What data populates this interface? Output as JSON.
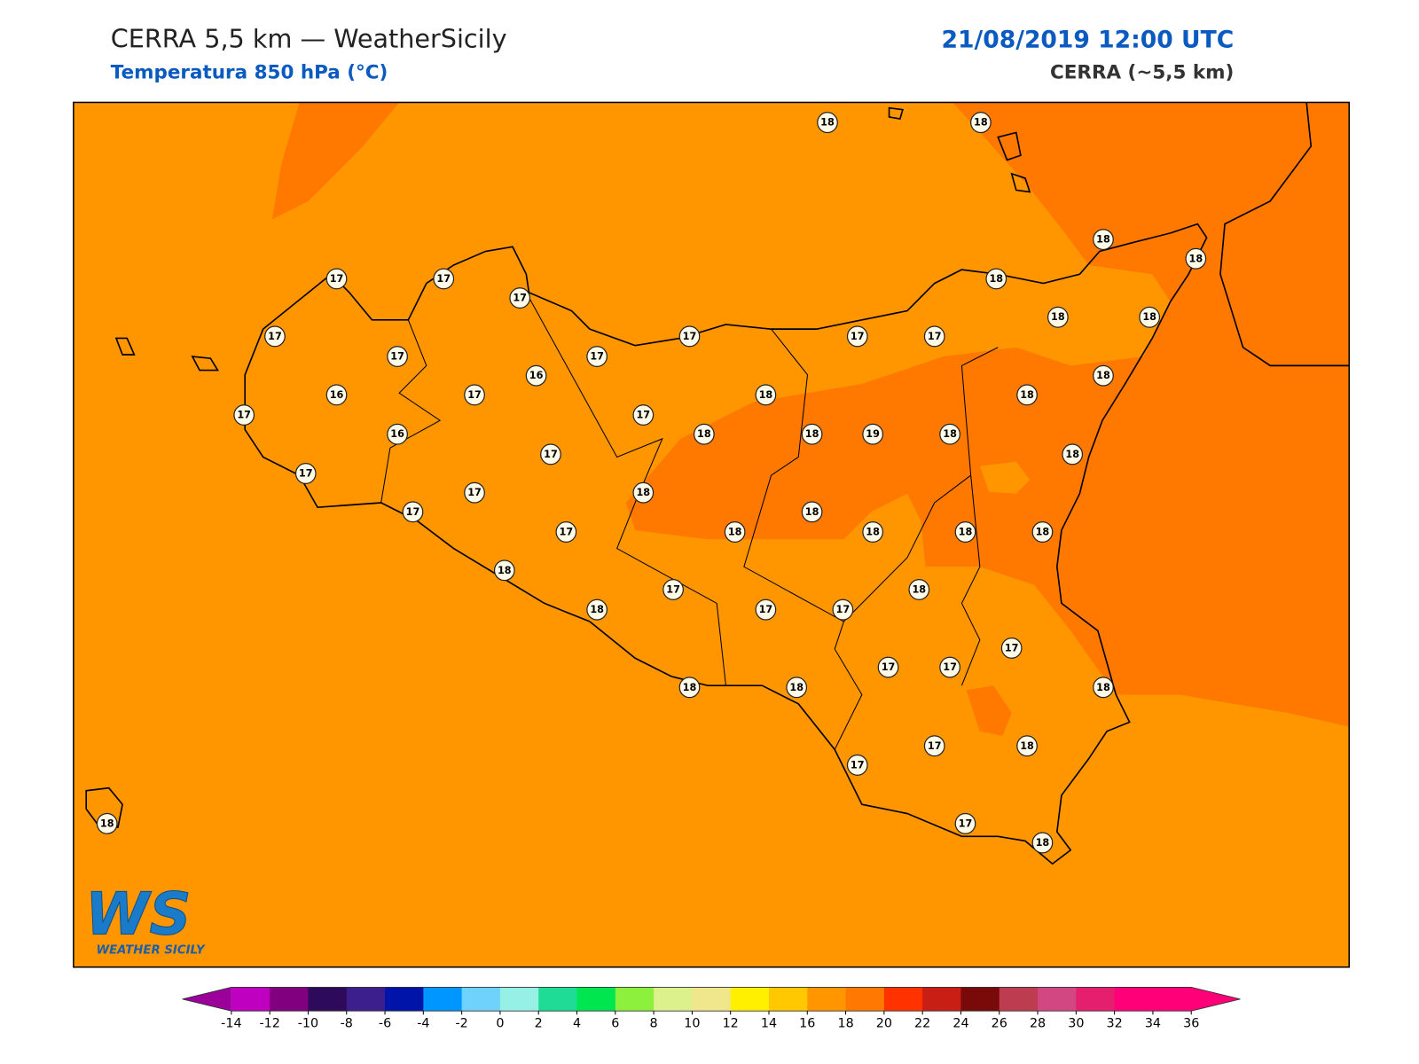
{
  "header": {
    "title": "CERRA 5,5 km — WeatherSicily",
    "subtitle": "Temperatura 850 hPa (°C)",
    "datetime": "21/08/2019 12:00 UTC",
    "model": "CERRA (~5,5 km)"
  },
  "logo": {
    "mark": "WS",
    "text": "WEATHER SICILY"
  },
  "stations": {
    "values": [
      18,
      18,
      18,
      18,
      17,
      17,
      17,
      18,
      18,
      18,
      17,
      17,
      17,
      17,
      17,
      17,
      16,
      18,
      16,
      17,
      18,
      18,
      17,
      17,
      16,
      18,
      18,
      19,
      18,
      17,
      18,
      17,
      17,
      18,
      17,
      18,
      17,
      18,
      18,
      18,
      18,
      18,
      17,
      18,
      18,
      17,
      17,
      17,
      17,
      17,
      18,
      18,
      18,
      17,
      17,
      18,
      17,
      18,
      18
    ]
  },
  "colorbar": {
    "ticks": [
      -14,
      -12,
      -10,
      -8,
      -6,
      -4,
      -2,
      0,
      2,
      4,
      6,
      8,
      10,
      12,
      14,
      16,
      18,
      20,
      22,
      24,
      26,
      28,
      30,
      32,
      34,
      36
    ],
    "colors": [
      "#c000c0",
      "#800080",
      "#2d0a5a",
      "#3c1e8c",
      "#0014aa",
      "#0096ff",
      "#6ed2fa",
      "#96f0e6",
      "#1edc96",
      "#00e650",
      "#8cf03c",
      "#dcf08c",
      "#f0e68c",
      "#fff000",
      "#ffc800",
      "#ff9600",
      "#ff7800",
      "#ff3200",
      "#c81e14",
      "#780a0a",
      "#be3c50",
      "#d24682",
      "#e61e6e",
      "#ff0078",
      "#ff0078"
    ],
    "under": "#9b009b",
    "over": "#ff0078"
  }
}
